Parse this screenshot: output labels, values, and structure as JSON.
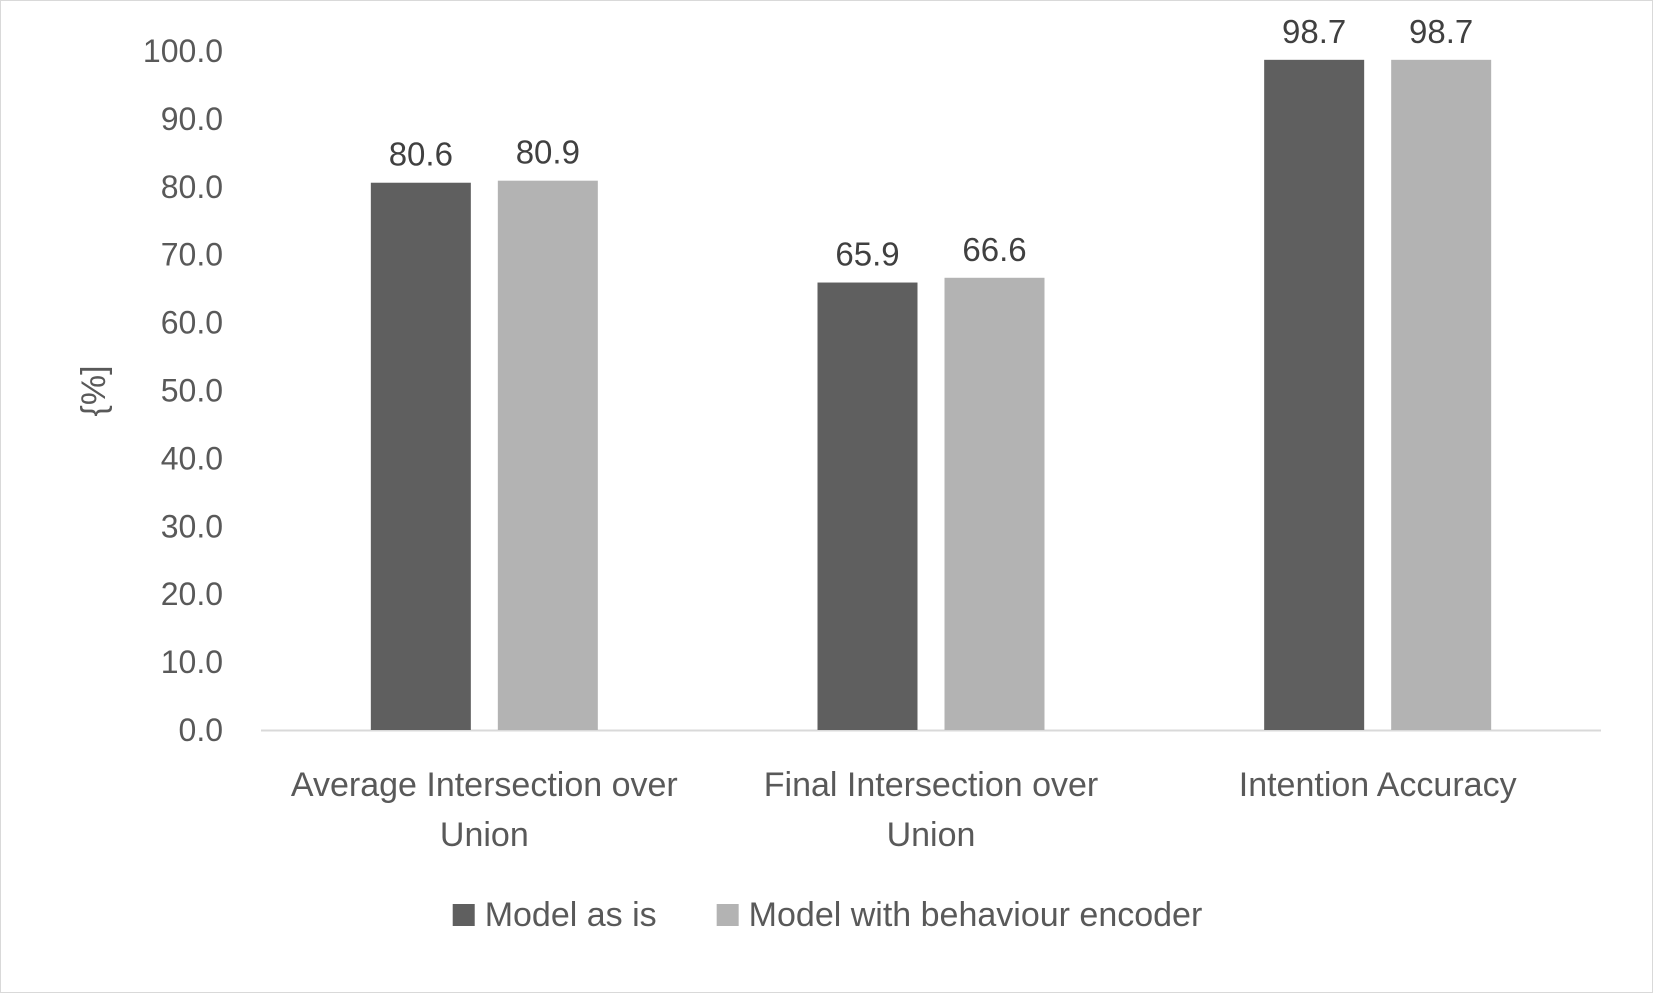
{
  "chart_data": {
    "type": "bar",
    "categories": [
      [
        "Average Intersection over",
        "Union"
      ],
      [
        "Final Intersection over",
        "Union"
      ],
      [
        "Intention Accuracy"
      ]
    ],
    "series": [
      {
        "name": "Model as is",
        "values": [
          80.6,
          65.9,
          98.7
        ],
        "color": "#5f5f5f"
      },
      {
        "name": "Model with behaviour encoder",
        "values": [
          80.9,
          66.6,
          98.7
        ],
        "color": "#b3b3b3"
      }
    ],
    "ylabel": "{%]",
    "ylim": [
      0,
      100
    ],
    "y_ticks": [
      0,
      10,
      20,
      30,
      40,
      50,
      60,
      70,
      80,
      90,
      100
    ],
    "tick_decimals": 1,
    "grid": false,
    "legend": "bottom-center",
    "axis_color": "#d9d9d9"
  }
}
